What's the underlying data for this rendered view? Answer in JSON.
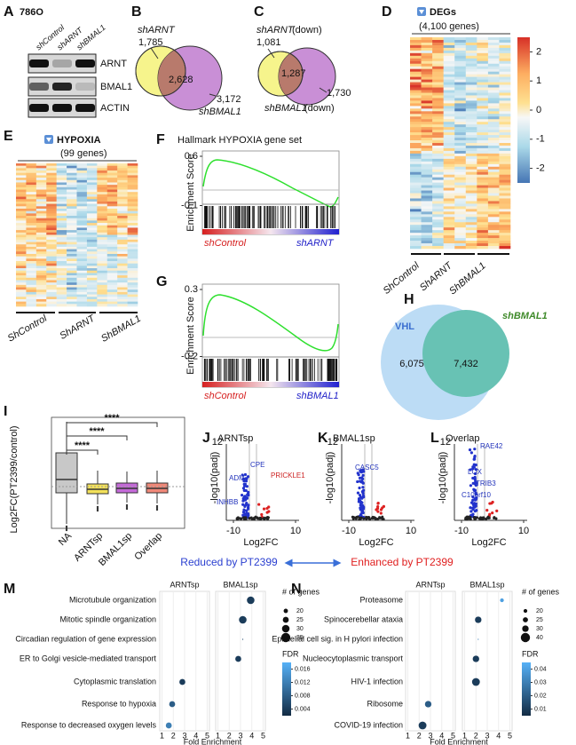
{
  "panel_a": {
    "label": "A",
    "cell_line": "786O",
    "lanes": [
      "shControl",
      "shARNT",
      "shBMAL1"
    ],
    "proteins": [
      "ARNT",
      "BMAL1",
      "ACTIN"
    ]
  },
  "panel_b": {
    "label": "B",
    "set1": "shARNT",
    "set1_only": "1,785",
    "overlap": "2,628",
    "set2_only": "3,172",
    "set2": "shBMAL1"
  },
  "panel_c": {
    "label": "C",
    "set1": "shARNT",
    "set1_note": "(down)",
    "set1_only": "1,081",
    "overlap": "1,287",
    "set2_only": "1,730",
    "set2": "shBMAL1",
    "set2_note": "(down)"
  },
  "panel_d": {
    "label": "D",
    "title": "DEGs",
    "subtitle": "(4,100 genes)",
    "colorbar_ticks": [
      2,
      1,
      0,
      -1,
      -2
    ],
    "groups": [
      "ShControl",
      "ShARNT",
      "ShBMAL1"
    ]
  },
  "panel_e": {
    "label": "E",
    "title": "HYPOXIA",
    "subtitle": "(99 genes)",
    "groups": [
      "ShControl",
      "ShARNT",
      "ShBMAL1"
    ]
  },
  "panel_f": {
    "label": "F",
    "title": "Hallmark HYPOXIA gene set",
    "y_label": "Enrichment Score",
    "yticks": [
      0.6,
      -0.1
    ],
    "groups": [
      "shControl",
      "shARNT"
    ]
  },
  "panel_g": {
    "label": "G",
    "y_label": "Enrichment Score",
    "yticks": [
      0.3,
      -0.2
    ],
    "groups": [
      "shControl",
      "shBMAL1"
    ]
  },
  "panel_h": {
    "label": "H",
    "set1": "VHL",
    "set1_only": "6,075",
    "overlap": "7,432",
    "set2": "shBMAL1"
  },
  "panel_i": {
    "label": "I",
    "y_label": "Log2FC(PT2399/control)",
    "categories": [
      "NA",
      "ARNTsp",
      "BMAL1sp",
      "Overlap"
    ],
    "significance": [
      "****",
      "****",
      "****"
    ]
  },
  "volcano": [
    {
      "label": "J",
      "title": "ARNTsp",
      "y_label": "-log10(padj)",
      "x_label": "Log2FC",
      "ytick_top": 12,
      "xticks": [
        -10,
        10
      ],
      "genes": [
        "CPE",
        "PRICKLE1",
        "ADM",
        "INHBB"
      ]
    },
    {
      "label": "K",
      "title": "BMAL1sp",
      "y_label": "-log10(padj)",
      "x_label": "Log2FC",
      "ytick_top": 12,
      "xticks": [
        -10,
        10
      ],
      "genes": [
        "CASC5"
      ]
    },
    {
      "label": "L",
      "title": "Overlap",
      "y_label": "-log10(padj)",
      "x_label": "Log2FC",
      "ytick_top": 12,
      "xticks": [
        -10,
        10
      ],
      "genes": [
        "RAE42",
        "LOX",
        "TRIB3",
        "C10orf10"
      ]
    }
  ],
  "direction": {
    "reduced": "Reduced by PT2399",
    "enhanced": "Enhanced by PT2399"
  },
  "enrichment": [
    {
      "label": "M",
      "terms": [
        "Microtubule organization",
        "Mitotic spindle organization",
        "Circadian regulation of gene expression",
        "ER to Golgi vesicle-mediated transport",
        "Cytoplasmic translation",
        "Response to hypoxia",
        "Response to decreased oxygen levels"
      ],
      "series": [
        {
          "name": "ARNTsp",
          "fold": [
            null,
            null,
            null,
            null,
            2.8,
            1.9,
            1.6
          ],
          "genes": [
            null,
            null,
            null,
            null,
            25,
            25,
            25
          ],
          "fdr": [
            null,
            null,
            null,
            null,
            0.004,
            0.008,
            0.012
          ]
        },
        {
          "name": "BMAL1sp",
          "fold": [
            3.9,
            3.2,
            3.2,
            2.8,
            null,
            null,
            null
          ],
          "genes": [
            30,
            30,
            10,
            25,
            null,
            null,
            null
          ],
          "fdr": [
            0.004,
            0.004,
            0.006,
            0.004,
            null,
            null,
            null
          ]
        }
      ],
      "xlim": [
        0.8,
        5.2
      ],
      "xticks": [
        1,
        2,
        3,
        4,
        5
      ],
      "x_label": "Fold Enrichment",
      "size_title": "# of genes",
      "sizes": [
        20,
        25,
        30,
        35
      ],
      "color_title": "FDR",
      "fdr_lim": [
        0.002,
        0.018
      ],
      "fdr_ticks": [
        0.016,
        0.012,
        0.008,
        0.004
      ]
    },
    {
      "label": "N",
      "terms": [
        "Proteasome",
        "Spinocerebellar ataxia",
        "Epithelial cell sig. in H pylori infection",
        "Nucleocytoplasmic transport",
        "HIV-1 infection",
        "Ribosome",
        "COVID-19 infection"
      ],
      "series": [
        {
          "name": "ARNTsp",
          "fold": [
            null,
            null,
            null,
            null,
            null,
            2.8,
            2.3
          ],
          "genes": [
            null,
            null,
            null,
            null,
            null,
            30,
            35
          ],
          "fdr": [
            null,
            null,
            null,
            null,
            null,
            0.02,
            0.01
          ]
        },
        {
          "name": "BMAL1sp",
          "fold": [
            4.3,
            2.2,
            2.2,
            2.0,
            2.0,
            null,
            null
          ],
          "genes": [
            20,
            30,
            10,
            30,
            35,
            null,
            null
          ],
          "fdr": [
            0.04,
            0.01,
            0.03,
            0.01,
            0.01,
            null,
            null
          ]
        }
      ],
      "xlim": [
        0.8,
        5.2
      ],
      "xticks": [
        1,
        2,
        3,
        4,
        5
      ],
      "x_label": "Fold Enrichment",
      "size_title": "# of genes",
      "sizes": [
        20,
        25,
        30,
        40
      ],
      "color_title": "FDR",
      "fdr_lim": [
        0.005,
        0.045
      ],
      "fdr_ticks": [
        0.04,
        0.03,
        0.02,
        0.01
      ]
    }
  ]
}
